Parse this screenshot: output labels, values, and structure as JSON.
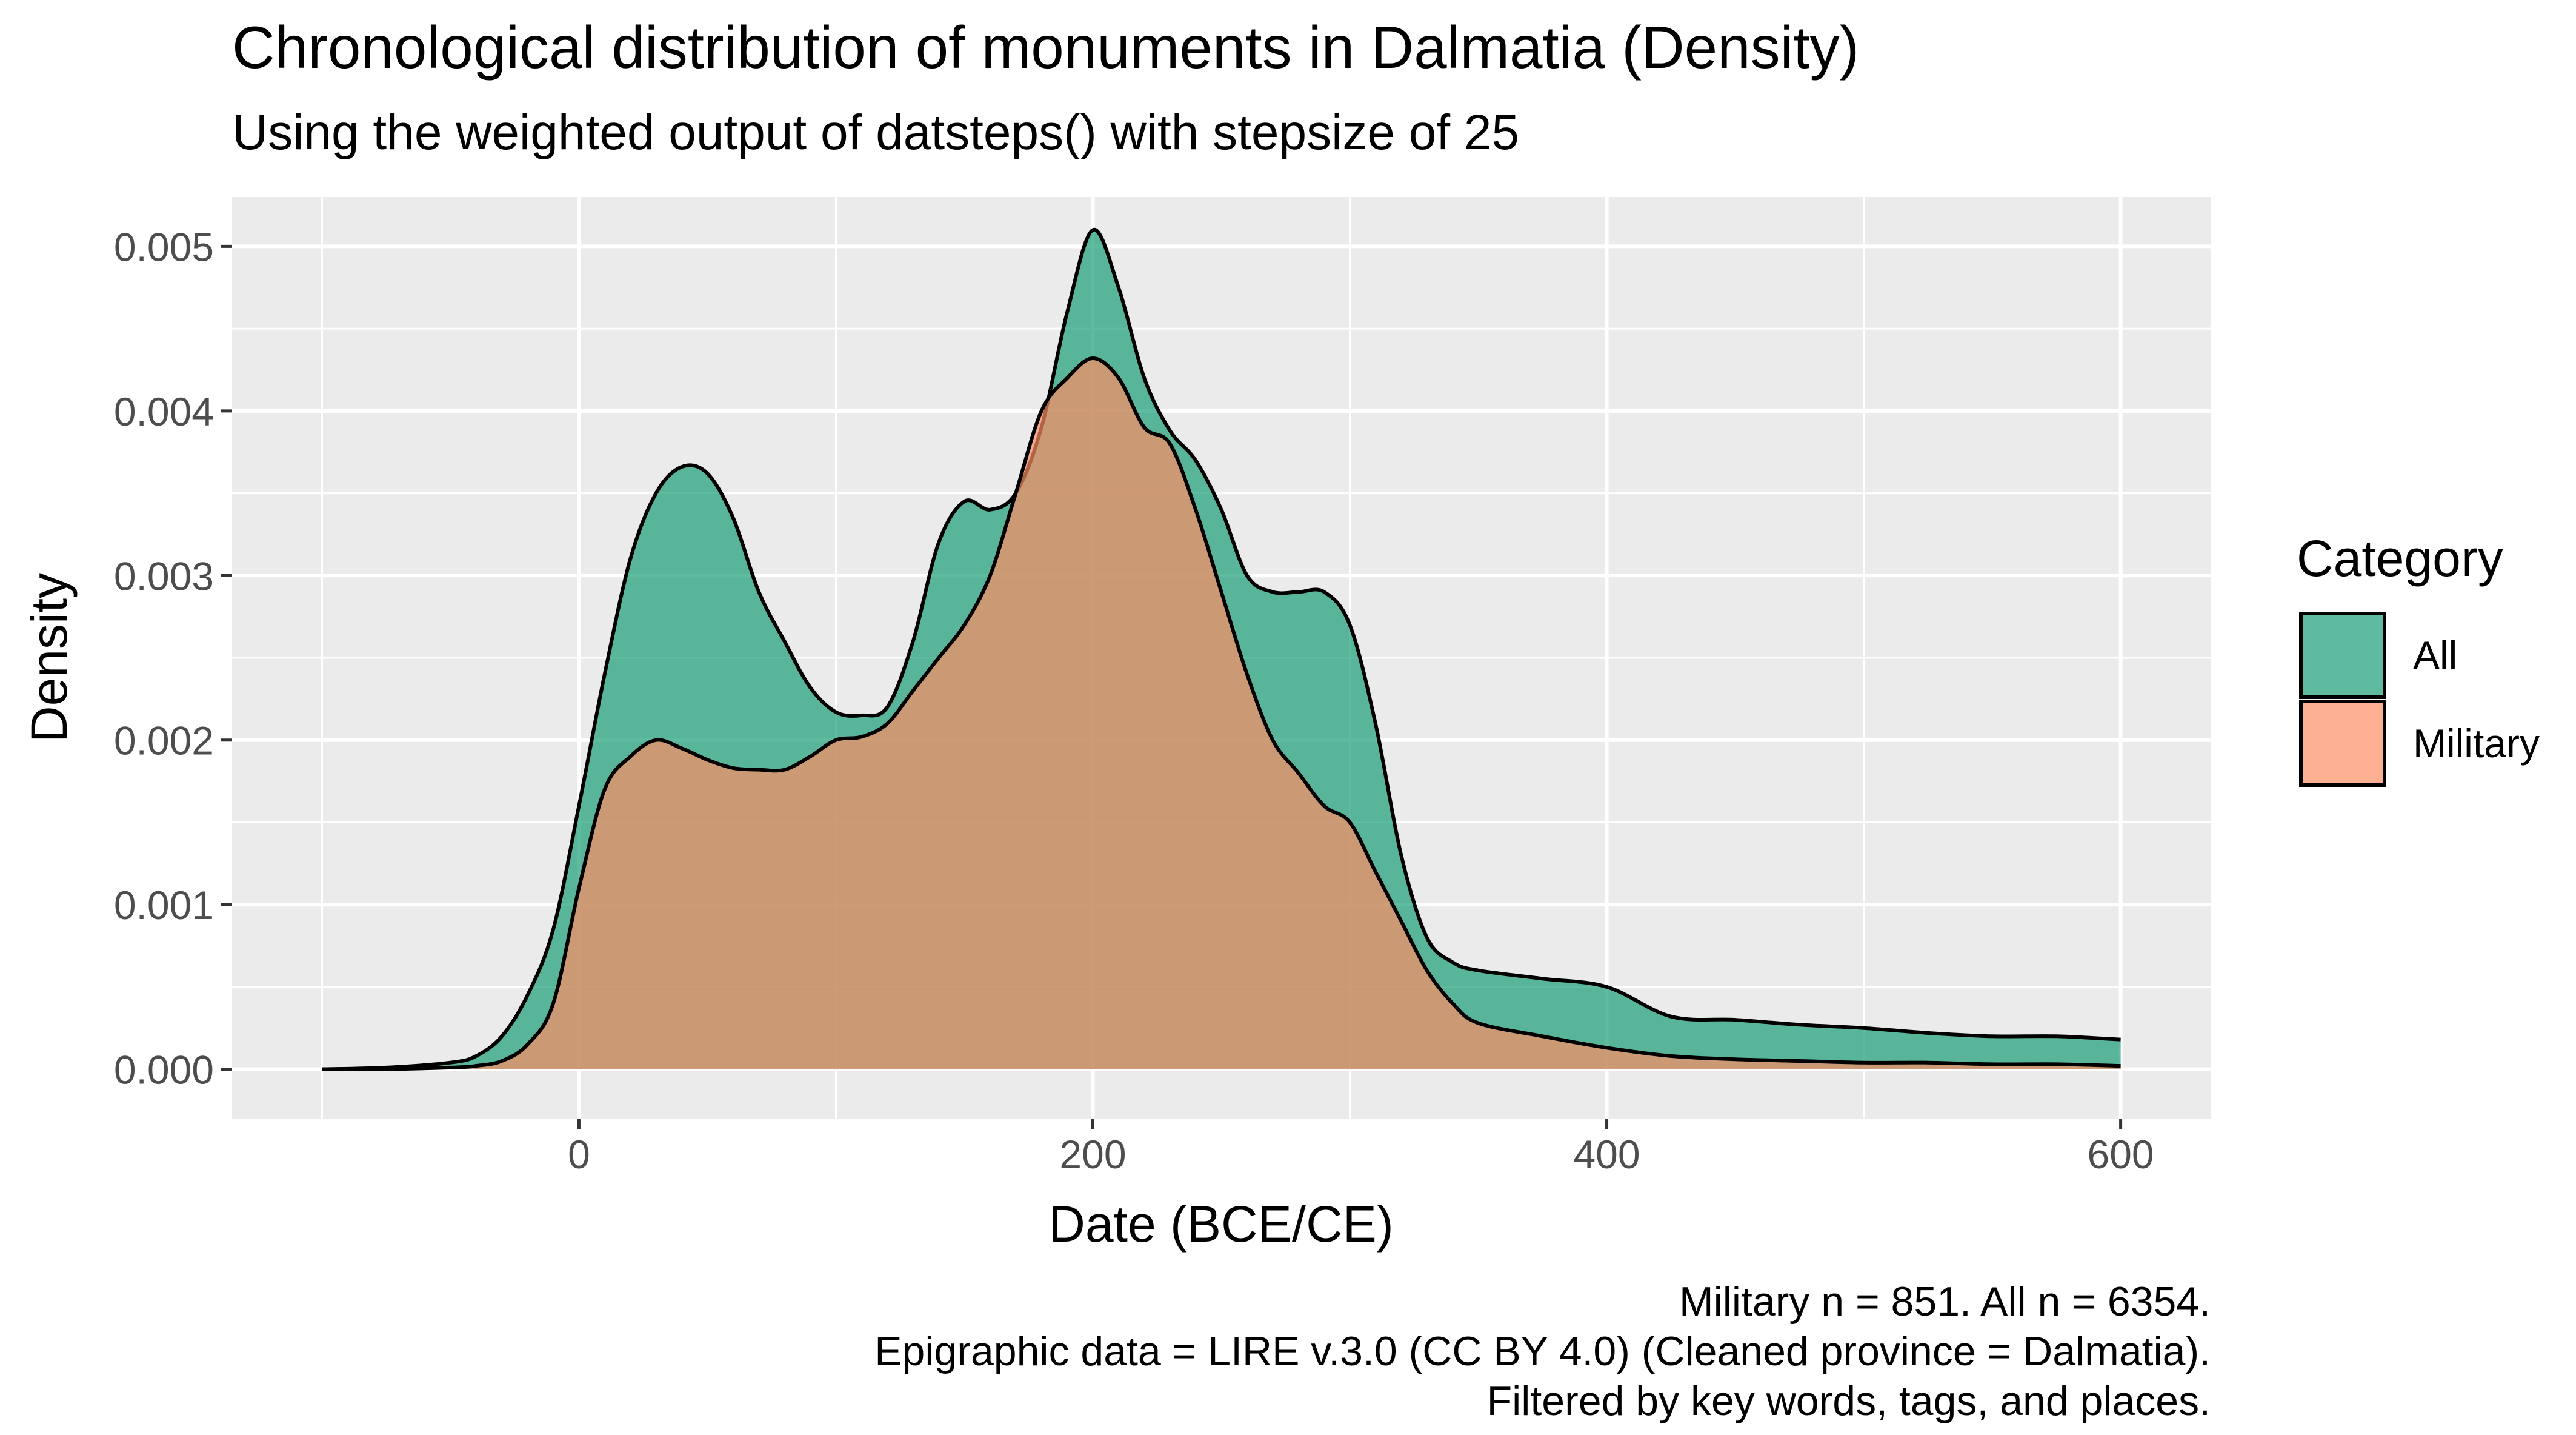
{
  "chart_data": {
    "type": "area",
    "title": "Chronological distribution of monuments in Dalmatia (Density)",
    "subtitle": "Using the weighted output of datsteps() with stepsize of 25",
    "xlabel": "Date (BCE/CE)",
    "ylabel": "Density",
    "xlim": [
      -100,
      600
    ],
    "ylim": [
      -0.0003,
      0.0053
    ],
    "x_ticks": [
      0,
      200,
      400,
      600
    ],
    "x_tick_labels": [
      "0",
      "200",
      "400",
      "600"
    ],
    "y_ticks": [
      0,
      0.001,
      0.002,
      0.003,
      0.004,
      0.005
    ],
    "y_tick_labels": [
      "0.000",
      "0.001",
      "0.002",
      "0.003",
      "0.004",
      "0.005"
    ],
    "grid": true,
    "legend": {
      "title": "Category",
      "position": "right"
    },
    "caption": [
      "Military n = 851. All n = 6354.",
      "Epigraphic data = LIRE v.3.0 (CC BY 4.0) (Cleaned province = Dalmatia).",
      "Filtered by key words, tags, and places."
    ],
    "series": [
      {
        "name": "All",
        "color": "#1b9e77",
        "x": [
          -100,
          -75,
          -50,
          -40,
          -30,
          -20,
          -10,
          0,
          10,
          20,
          30,
          40,
          50,
          60,
          70,
          80,
          90,
          100,
          110,
          120,
          130,
          140,
          150,
          160,
          170,
          180,
          190,
          200,
          210,
          220,
          230,
          240,
          250,
          260,
          270,
          280,
          290,
          300,
          310,
          320,
          330,
          340,
          350,
          375,
          400,
          425,
          450,
          475,
          500,
          525,
          550,
          575,
          600
        ],
        "values": [
          0,
          1e-05,
          4e-05,
          8e-05,
          0.0002,
          0.00045,
          0.00085,
          0.0016,
          0.0024,
          0.0031,
          0.0035,
          0.00366,
          0.00362,
          0.00335,
          0.0029,
          0.0026,
          0.00232,
          0.00217,
          0.00215,
          0.0022,
          0.0026,
          0.0032,
          0.00345,
          0.0034,
          0.0035,
          0.0039,
          0.0046,
          0.0051,
          0.00475,
          0.0042,
          0.00388,
          0.0037,
          0.0034,
          0.003,
          0.0029,
          0.0029,
          0.0029,
          0.0027,
          0.0021,
          0.0013,
          0.0008,
          0.00065,
          0.0006,
          0.00055,
          0.0005,
          0.00032,
          0.0003,
          0.00027,
          0.00025,
          0.00022,
          0.0002,
          0.0002,
          0.00018
        ]
      },
      {
        "name": "Military",
        "color": "#fc8d62",
        "x": [
          -100,
          -75,
          -50,
          -40,
          -30,
          -20,
          -10,
          0,
          10,
          20,
          30,
          40,
          50,
          60,
          70,
          80,
          90,
          100,
          110,
          120,
          130,
          140,
          150,
          160,
          170,
          180,
          190,
          200,
          210,
          220,
          230,
          240,
          250,
          260,
          270,
          280,
          290,
          300,
          310,
          320,
          330,
          340,
          350,
          375,
          400,
          425,
          450,
          475,
          500,
          525,
          550,
          575,
          600
        ],
        "values": [
          0,
          0,
          1e-05,
          2e-05,
          5e-05,
          0.00015,
          0.0004,
          0.0011,
          0.0017,
          0.0019,
          0.002,
          0.00195,
          0.00188,
          0.00183,
          0.00182,
          0.00182,
          0.0019,
          0.002,
          0.00202,
          0.0021,
          0.0023,
          0.0025,
          0.0027,
          0.003,
          0.0035,
          0.004,
          0.0042,
          0.00432,
          0.0042,
          0.0039,
          0.0038,
          0.0034,
          0.0029,
          0.0024,
          0.002,
          0.0018,
          0.0016,
          0.0015,
          0.0012,
          0.0009,
          0.0006,
          0.0004,
          0.00028,
          0.0002,
          0.00013,
          8e-05,
          6e-05,
          5e-05,
          4e-05,
          4e-05,
          3e-05,
          3e-05,
          2e-05
        ]
      }
    ]
  }
}
